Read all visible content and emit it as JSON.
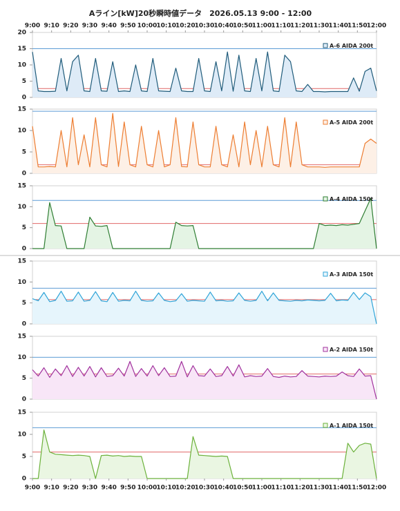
{
  "title": "Aライン[kW]20秒瞬時値データ　2026.05.13 9:00 - 12:00",
  "chart_data": [
    {
      "type": "line",
      "xlim": [
        0,
        180
      ],
      "xticks": [
        {
          "value": 0,
          "label": "9:00"
        },
        {
          "value": 10,
          "label": "9:10"
        },
        {
          "value": 20,
          "label": "9:20"
        },
        {
          "value": 30,
          "label": "9:30"
        },
        {
          "value": 40,
          "label": "9:40"
        },
        {
          "value": 50,
          "label": "9:50"
        },
        {
          "value": 60,
          "label": "10:00"
        },
        {
          "value": 70,
          "label": "10:10"
        },
        {
          "value": 80,
          "label": "10:20"
        },
        {
          "value": 90,
          "label": "10:30"
        },
        {
          "value": 100,
          "label": "10:40"
        },
        {
          "value": 110,
          "label": "10:50"
        },
        {
          "value": 120,
          "label": "11:00"
        },
        {
          "value": 130,
          "label": "11:10"
        },
        {
          "value": 140,
          "label": "11:20"
        },
        {
          "value": 150,
          "label": "11:30"
        },
        {
          "value": 160,
          "label": "11:40"
        },
        {
          "value": 170,
          "label": "11:50"
        },
        {
          "value": 180,
          "label": "12:00"
        }
      ],
      "ylim": [
        0,
        20
      ],
      "yticks": [
        0,
        5,
        10,
        15,
        20
      ],
      "ref_lines": [
        {
          "value": 15,
          "color": "#5b9bd5"
        },
        {
          "value": 2.7,
          "color": "#e06666"
        }
      ],
      "x": [
        0,
        3,
        6,
        9,
        12,
        15,
        18,
        21,
        24,
        27,
        30,
        33,
        36,
        39,
        42,
        45,
        48,
        51,
        54,
        57,
        60,
        63,
        66,
        69,
        72,
        75,
        78,
        81,
        84,
        87,
        90,
        93,
        96,
        99,
        102,
        105,
        108,
        111,
        114,
        117,
        120,
        123,
        126,
        129,
        132,
        135,
        138,
        141,
        144,
        147,
        150,
        153,
        156,
        159,
        162,
        165,
        168,
        171,
        174,
        177,
        180
      ],
      "series": [
        {
          "name": "A-6 AIDA 200t",
          "color": "#1f5b7a",
          "fill": "#deebf7",
          "values": [
            14,
            2,
            1.8,
            1.8,
            1.9,
            12,
            2,
            11,
            13,
            2,
            1.8,
            12,
            2,
            1.9,
            11,
            1.8,
            2,
            1.8,
            10,
            2,
            1.8,
            12,
            2,
            1.9,
            1.8,
            9,
            2,
            1.8,
            1.8,
            12,
            2,
            1.8,
            11,
            2,
            14,
            1.9,
            13,
            2,
            1.8,
            12,
            2,
            14,
            2,
            1.8,
            13,
            11,
            2,
            1.8,
            4,
            1.8,
            1.8,
            1.7,
            1.8,
            1.8,
            1.8,
            1.8,
            6,
            1.9,
            8,
            9,
            2
          ]
        }
      ]
    },
    {
      "type": "line",
      "xlim": [
        0,
        180
      ],
      "ylim": [
        0,
        15
      ],
      "yticks": [
        0,
        5,
        10,
        15
      ],
      "ref_lines": [
        {
          "value": 14.5,
          "color": "#5b9bd5"
        },
        {
          "value": 2,
          "color": "#e06666"
        }
      ],
      "x": [
        0,
        3,
        6,
        9,
        12,
        15,
        18,
        21,
        24,
        27,
        30,
        33,
        36,
        39,
        42,
        45,
        48,
        51,
        54,
        57,
        60,
        63,
        66,
        69,
        72,
        75,
        78,
        81,
        84,
        87,
        90,
        93,
        96,
        99,
        102,
        105,
        108,
        111,
        114,
        117,
        120,
        123,
        126,
        129,
        132,
        135,
        138,
        141,
        144,
        147,
        150,
        153,
        156,
        159,
        162,
        165,
        168,
        171,
        174,
        177,
        180
      ],
      "series": [
        {
          "name": "A-5 AIDA 200t",
          "color": "#ed7d31",
          "fill": "#fdf0e6",
          "values": [
            11,
            1.5,
            1.5,
            1.6,
            1.5,
            10,
            1.5,
            13,
            2,
            9,
            1.5,
            13,
            2,
            1.5,
            14,
            1.6,
            12,
            2,
            1.5,
            11,
            2,
            1.5,
            10,
            1.5,
            2,
            13,
            1.6,
            1.5,
            12,
            2,
            1.5,
            1.5,
            11,
            2,
            1.5,
            9,
            1.5,
            12,
            2,
            10,
            1.5,
            11,
            2,
            1.5,
            13,
            1.5,
            12,
            2,
            1.5,
            1.5,
            1.5,
            1.4,
            1.5,
            1.5,
            1.5,
            1.5,
            1.5,
            1.5,
            7,
            8,
            7
          ]
        }
      ]
    },
    {
      "type": "line",
      "xlim": [
        0,
        180
      ],
      "ylim": [
        0,
        15
      ],
      "yticks": [
        0,
        5,
        10,
        15
      ],
      "ref_lines": [
        {
          "value": 11.5,
          "color": "#5b9bd5"
        },
        {
          "value": 6,
          "color": "#e06666"
        }
      ],
      "x": [
        0,
        3,
        6,
        9,
        12,
        15,
        18,
        21,
        24,
        27,
        30,
        33,
        36,
        39,
        42,
        45,
        48,
        51,
        54,
        57,
        60,
        63,
        66,
        69,
        72,
        75,
        78,
        81,
        84,
        87,
        90,
        93,
        96,
        99,
        102,
        105,
        108,
        111,
        114,
        117,
        120,
        123,
        126,
        129,
        132,
        135,
        138,
        141,
        144,
        147,
        150,
        153,
        156,
        159,
        162,
        165,
        168,
        171,
        174,
        177,
        180
      ],
      "series": [
        {
          "name": "A-4 AIDA 150t",
          "color": "#2e7d32",
          "fill": "#e4f4e4",
          "values": [
            0,
            0,
            0,
            11,
            5.5,
            5.4,
            0,
            0,
            0,
            0,
            7.5,
            5.4,
            5.3,
            5.5,
            0,
            0,
            0,
            0,
            0,
            0,
            0,
            0,
            0,
            0,
            0,
            6.3,
            5.5,
            5.4,
            5.5,
            0,
            0,
            0,
            0,
            0,
            0,
            0,
            0,
            0,
            0,
            0,
            0,
            0,
            0,
            0,
            0,
            0,
            0,
            0,
            0,
            0,
            6,
            5.5,
            5.6,
            5.5,
            5.7,
            5.6,
            5.8,
            6,
            9,
            12,
            0
          ]
        }
      ]
    },
    {
      "type": "line",
      "xlim": [
        0,
        180
      ],
      "ylim": [
        0,
        15
      ],
      "yticks": [
        0,
        5,
        10,
        15
      ],
      "ref_lines": [
        {
          "value": 8.5,
          "color": "#5b9bd5"
        },
        {
          "value": 5.8,
          "color": "#e06666"
        }
      ],
      "x": [
        0,
        3,
        6,
        9,
        12,
        15,
        18,
        21,
        24,
        27,
        30,
        33,
        36,
        39,
        42,
        45,
        48,
        51,
        54,
        57,
        60,
        63,
        66,
        69,
        72,
        75,
        78,
        81,
        84,
        87,
        90,
        93,
        96,
        99,
        102,
        105,
        108,
        111,
        114,
        117,
        120,
        123,
        126,
        129,
        132,
        135,
        138,
        141,
        144,
        147,
        150,
        153,
        156,
        159,
        162,
        165,
        168,
        171,
        174,
        177,
        180
      ],
      "series": [
        {
          "name": "A-3 AIDA 150t",
          "color": "#2fa4d8",
          "fill": "#e6f5fc",
          "values": [
            6,
            5.5,
            7.5,
            5.3,
            5.6,
            7.8,
            5.4,
            5.5,
            7.6,
            5.4,
            5.6,
            7.7,
            5.5,
            5.3,
            7.5,
            5.4,
            5.6,
            5.5,
            7.8,
            5.6,
            5.4,
            5.5,
            7.4,
            5.6,
            5.3,
            5.5,
            7.2,
            5.4,
            5.6,
            5.5,
            5.4,
            7.6,
            5.5,
            5.6,
            5.4,
            5.5,
            7.4,
            5.6,
            5.4,
            5.6,
            7.8,
            5.5,
            7.4,
            5.6,
            5.5,
            5.4,
            5.6,
            5.5,
            5.7,
            5.6,
            5.5,
            5.6,
            7.3,
            5.5,
            5.7,
            5.6,
            7.5,
            5.8,
            7.4,
            6.5,
            0
          ]
        }
      ]
    },
    {
      "type": "line",
      "xlim": [
        0,
        180
      ],
      "ylim": [
        0,
        15
      ],
      "yticks": [
        0,
        5,
        10,
        15
      ],
      "ref_lines": [
        {
          "value": 10,
          "color": "#5b9bd5"
        },
        {
          "value": 6,
          "color": "#e06666"
        }
      ],
      "x": [
        0,
        3,
        6,
        9,
        12,
        15,
        18,
        21,
        24,
        27,
        30,
        33,
        36,
        39,
        42,
        45,
        48,
        51,
        54,
        57,
        60,
        63,
        66,
        69,
        72,
        75,
        78,
        81,
        84,
        87,
        90,
        93,
        96,
        99,
        102,
        105,
        108,
        111,
        114,
        117,
        120,
        123,
        126,
        129,
        132,
        135,
        138,
        141,
        144,
        147,
        150,
        153,
        156,
        159,
        162,
        165,
        168,
        171,
        174,
        177,
        180
      ],
      "series": [
        {
          "name": "A-2 AIDA 150t",
          "color": "#a0309c",
          "fill": "#f8e6f7",
          "values": [
            7,
            5.5,
            7.5,
            5.2,
            7.2,
            5.6,
            8,
            5.4,
            7.6,
            5.5,
            7.8,
            5.3,
            7.5,
            5.4,
            5.6,
            7.4,
            5.5,
            9,
            5.4,
            7.3,
            5.5,
            8,
            5.6,
            7.5,
            5.4,
            5.5,
            9,
            5.3,
            8,
            5.6,
            5.5,
            7.2,
            5.4,
            5.6,
            7.8,
            5.5,
            8.2,
            5.3,
            5.6,
            5.4,
            5.5,
            7.3,
            5.4,
            5.2,
            5.5,
            5.3,
            5.4,
            6.8,
            5.5,
            5.4,
            5.3,
            5.5,
            5.4,
            5.5,
            6.5,
            5.6,
            5.4,
            7.2,
            5.5,
            5.6,
            0
          ]
        }
      ]
    },
    {
      "type": "line",
      "xlim": [
        0,
        180
      ],
      "xticks": [
        {
          "value": 0,
          "label": "9:00"
        },
        {
          "value": 10,
          "label": "9:10"
        },
        {
          "value": 20,
          "label": "9:20"
        },
        {
          "value": 30,
          "label": "9:30"
        },
        {
          "value": 40,
          "label": "9:40"
        },
        {
          "value": 50,
          "label": "9:50"
        },
        {
          "value": 60,
          "label": "10:00"
        },
        {
          "value": 70,
          "label": "10:10"
        },
        {
          "value": 80,
          "label": "10:20"
        },
        {
          "value": 90,
          "label": "10:30"
        },
        {
          "value": 100,
          "label": "10:40"
        },
        {
          "value": 110,
          "label": "10:50"
        },
        {
          "value": 120,
          "label": "11:00"
        },
        {
          "value": 130,
          "label": "11:10"
        },
        {
          "value": 140,
          "label": "11:20"
        },
        {
          "value": 150,
          "label": "11:30"
        },
        {
          "value": 160,
          "label": "11:40"
        },
        {
          "value": 170,
          "label": "11:50"
        },
        {
          "value": 180,
          "label": "12:00"
        }
      ],
      "ylim": [
        0,
        15
      ],
      "yticks": [
        0,
        5,
        10,
        15
      ],
      "ref_lines": [
        {
          "value": 11.5,
          "color": "#5b9bd5"
        },
        {
          "value": 6,
          "color": "#e06666"
        }
      ],
      "x": [
        0,
        3,
        6,
        9,
        12,
        15,
        18,
        21,
        24,
        27,
        30,
        33,
        36,
        39,
        42,
        45,
        48,
        51,
        54,
        57,
        60,
        63,
        66,
        69,
        72,
        75,
        78,
        81,
        84,
        87,
        90,
        93,
        96,
        99,
        102,
        105,
        108,
        111,
        114,
        117,
        120,
        123,
        126,
        129,
        132,
        135,
        138,
        141,
        144,
        147,
        150,
        153,
        156,
        159,
        162,
        165,
        168,
        171,
        174,
        177,
        180
      ],
      "series": [
        {
          "name": "A-1 AIDA 150t",
          "color": "#6bb13a",
          "fill": "#eaf6e2",
          "values": [
            0,
            0,
            11,
            6,
            5.5,
            5.4,
            5.3,
            5.2,
            5.3,
            5.2,
            5,
            0,
            5.2,
            5.3,
            5.1,
            5.2,
            5,
            5.1,
            5,
            5,
            0,
            0,
            0,
            0,
            0,
            0,
            0,
            0,
            9.5,
            5.3,
            5.2,
            5.1,
            5,
            5.1,
            5,
            0,
            0,
            0,
            0,
            0,
            0,
            0,
            0,
            0,
            0,
            0,
            0,
            0,
            0,
            0,
            0,
            0,
            0,
            0,
            0,
            8,
            6,
            7.5,
            8,
            7.8,
            0
          ]
        }
      ]
    }
  ]
}
